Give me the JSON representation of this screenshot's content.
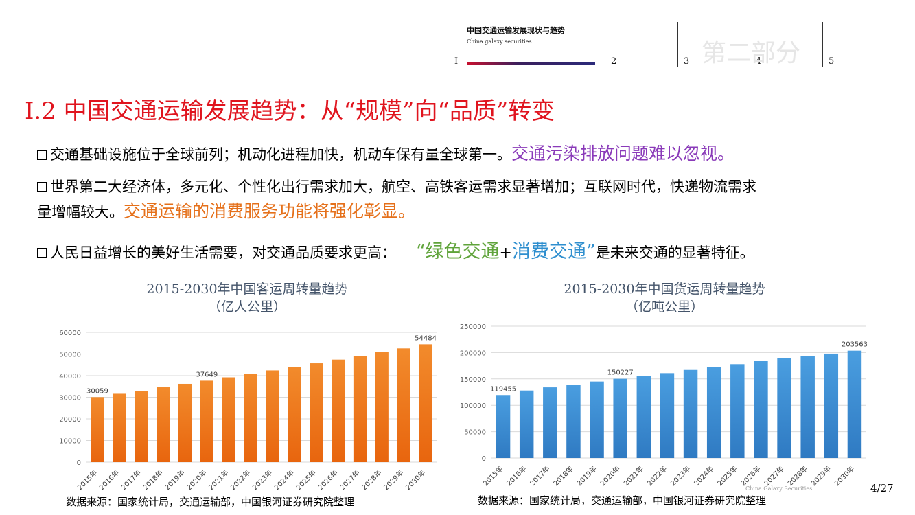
{
  "nav": {
    "title": "中国交通运输发展现状与趋势",
    "subtitle": "China galaxy securities",
    "numbers": [
      "I",
      "2",
      "3",
      "4",
      "5"
    ],
    "watermark": "第二部分"
  },
  "heading": "I.2 中国交通运输发展趋势：从“规模”向“品质”转变",
  "bullets": {
    "b1": {
      "text": "交通基础设施位于全球前列；机动化进程加快，机动车保有量全球第一。",
      "highlight": "交通污染排放问题难以忽视。"
    },
    "b2": {
      "line1": "世界第二大经济体，多元化、个性化出行需求加大，航空、高铁客运需求显著增加；互联网时代，快递物流需求",
      "line2": "量增幅较大。",
      "highlight": "交通运输的消费服务功能将强化彰显。"
    },
    "b3": {
      "text": "人民日益增长的美好生活需要，对交通品质要求更高：",
      "open_quote": "“",
      "green": "绿色交通",
      "plus": "+",
      "blue": "消费交通",
      "close_quote": "”",
      "tail": "是未来交通的显著特征。"
    }
  },
  "colors": {
    "heading": "#e0141e",
    "purple": "#8a3ab9",
    "orange": "#e5701a",
    "green": "#5fa33a",
    "blue": "#2f8fcf",
    "bar_orange": "#f07a1c",
    "bar_blue": "#3f8fd4"
  },
  "chart_data": [
    {
      "type": "bar",
      "title": "2015-2030年中国客运周转量趋势",
      "subtitle": "（亿人公里）",
      "categories": [
        "2015年",
        "2016年",
        "2017年",
        "2018年",
        "2019年",
        "2020年",
        "2021年",
        "2022年",
        "2023年",
        "2024年",
        "2025年",
        "2026年",
        "2027年",
        "2028年",
        "2029年",
        "2030年"
      ],
      "values": [
        30059,
        31600,
        33000,
        34600,
        36200,
        37649,
        39200,
        40800,
        42400,
        44000,
        45700,
        47400,
        49200,
        50900,
        52600,
        54484
      ],
      "data_labels": {
        "0": "30059",
        "5": "37649",
        "15": "54484"
      },
      "yticks": [
        "0",
        "10000",
        "20000",
        "30000",
        "40000",
        "50000",
        "60000"
      ],
      "ylim": [
        0,
        60000
      ],
      "grid": true
    },
    {
      "type": "bar",
      "title": "2015-2030年中国货运周转量趋势",
      "subtitle": "（亿吨公里）",
      "categories": [
        "2015年",
        "2016年",
        "2017年",
        "2018年",
        "2019年",
        "2020年",
        "2021年",
        "2022年",
        "2023年",
        "2024年",
        "2025年",
        "2026年",
        "2027年",
        "2028年",
        "2029年",
        "2030年"
      ],
      "values": [
        119455,
        128000,
        134000,
        139000,
        145000,
        150227,
        156000,
        161000,
        167000,
        173000,
        178000,
        184000,
        189000,
        193000,
        198000,
        203563
      ],
      "data_labels": {
        "0": "119455",
        "5": "150227",
        "15": "203563"
      },
      "yticks": [
        "0",
        "50000",
        "100000",
        "150000",
        "200000",
        "250000"
      ],
      "ylim": [
        0,
        250000
      ],
      "grid": true
    }
  ],
  "source_text": "数据来源：国家统计局，交通运输部，中国银河证券研究院整理",
  "footer_en": "China Galaxy Securities",
  "page": "4/27"
}
